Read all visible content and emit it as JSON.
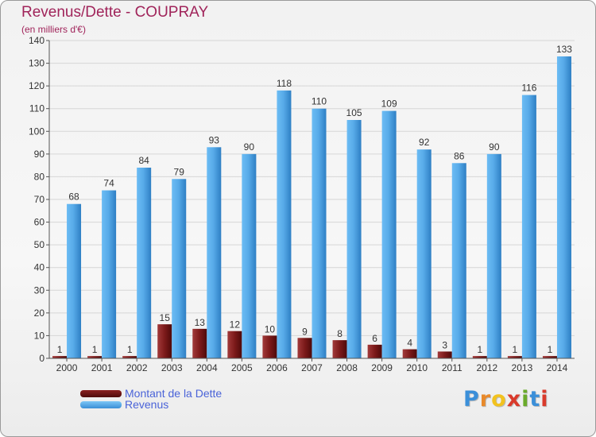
{
  "header": {
    "title": "Revenus/Dette - COUPRAY",
    "subtitle": "(en milliers d'€)"
  },
  "legend": {
    "debt_label": "Montant de la Dette",
    "revenue_label": "Revenus"
  },
  "logo": {
    "letters": [
      "P",
      "r",
      "o",
      "x",
      "i",
      "t",
      "i"
    ],
    "colors": [
      "#3b8fd9",
      "#e8892a",
      "#f2c21f",
      "#d93a2b",
      "#6aaa2a",
      "#3b8fd9",
      "#d93a2b"
    ]
  },
  "colors": {
    "debt": "#6e1010",
    "revenue": "#4aa3e8",
    "grid": "#d6d6d6",
    "axis": "#555555"
  },
  "chart_data": {
    "type": "bar",
    "title": "Revenus/Dette - COUPRAY",
    "ylabel": "(en milliers d'€)",
    "xlabel": "",
    "ylim": [
      0,
      140
    ],
    "yticks": [
      0,
      10,
      20,
      30,
      40,
      50,
      60,
      70,
      80,
      90,
      100,
      110,
      120,
      130,
      140
    ],
    "grid": true,
    "legend_position": "bottom-left",
    "categories": [
      "2000",
      "2001",
      "2002",
      "2003",
      "2004",
      "2005",
      "2006",
      "2007",
      "2008",
      "2009",
      "2010",
      "2011",
      "2012",
      "2013",
      "2014"
    ],
    "series": [
      {
        "name": "Montant de la Dette",
        "values": [
          1,
          1,
          1,
          15,
          13,
          12,
          10,
          9,
          8,
          6,
          4,
          3,
          1,
          1,
          1
        ]
      },
      {
        "name": "Revenus",
        "values": [
          68,
          74,
          84,
          79,
          93,
          90,
          118,
          110,
          105,
          109,
          92,
          86,
          90,
          116,
          133
        ]
      }
    ]
  }
}
